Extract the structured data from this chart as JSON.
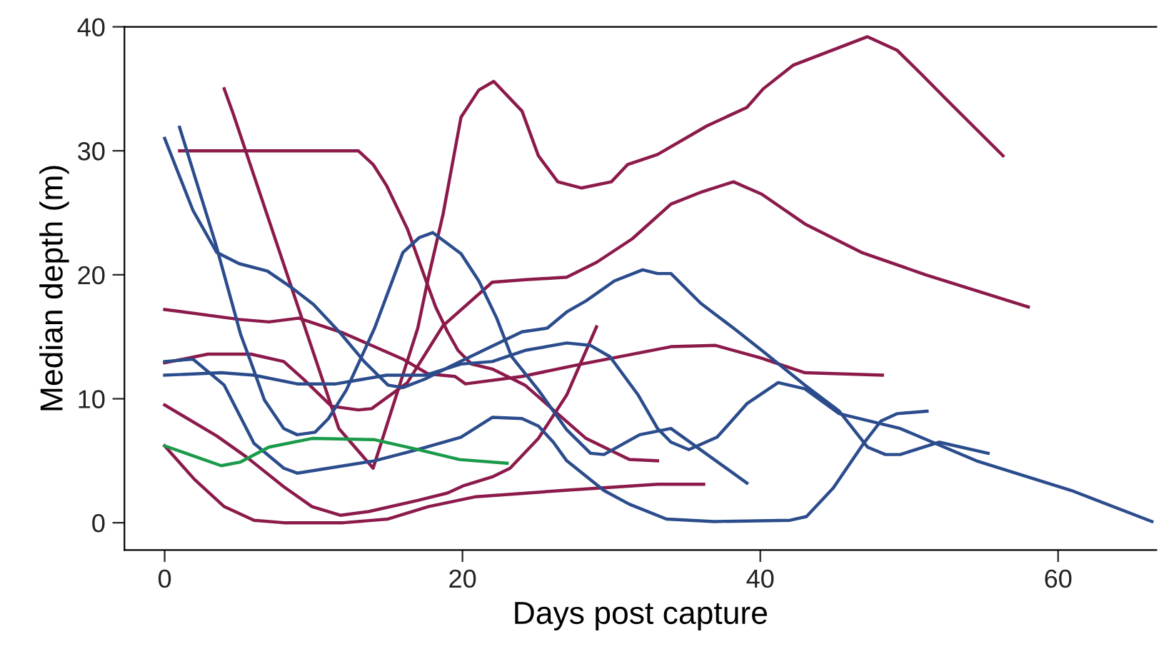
{
  "chart_data": {
    "type": "line",
    "xlabel": "Days post capture",
    "ylabel": "Median depth (m)",
    "xlim": [
      -2.7,
      66.6
    ],
    "ylim": [
      -2.2,
      40
    ],
    "xticks": [
      0,
      20,
      40,
      60
    ],
    "yticks": [
      0,
      10,
      20,
      30,
      40
    ],
    "grid": false,
    "marker": "none",
    "line_style": "solid",
    "series": [
      {
        "color": "#8b1a4b",
        "x": [
          4,
          4.6,
          11.7,
          14,
          17,
          17.7,
          18.7,
          19.9,
          21.1,
          22.1,
          24,
          25.1,
          26.4,
          28,
          30,
          31.1,
          33.1,
          36.4,
          39.1,
          40.2,
          42.2,
          47.2,
          49.2,
          50.8,
          52.7,
          56.3
        ],
        "values": [
          35,
          33,
          7.6,
          4.4,
          15.7,
          19.7,
          24.9,
          32.7,
          34.9,
          35.6,
          33.2,
          29.6,
          27.5,
          27,
          27.5,
          28.9,
          29.7,
          32,
          33.5,
          35,
          36.9,
          39.2,
          38.1,
          36.2,
          33.9,
          29.6
        ]
      },
      {
        "color": "#8b1a4b",
        "x": [
          1,
          13,
          14,
          14.9,
          16.3,
          17.5,
          18.2,
          19,
          19.7,
          20.6,
          22,
          24.2,
          26.1,
          28.3,
          31.2,
          33.1
        ],
        "values": [
          30,
          30,
          28.9,
          27.2,
          23.7,
          19.7,
          17.4,
          15.4,
          13.9,
          12.8,
          12.4,
          11.1,
          9.1,
          6.8,
          5.1,
          5
        ]
      },
      {
        "color": "#8b1a4b",
        "x": [
          0,
          5,
          7,
          9,
          12,
          16,
          17.7,
          19.5,
          20.2,
          24,
          28,
          34,
          37,
          40,
          43,
          48.2
        ],
        "values": [
          17.2,
          16.4,
          16.2,
          16.5,
          15.3,
          13.2,
          12,
          11.8,
          11.2,
          11.8,
          12.8,
          14.2,
          14.3,
          13.3,
          12.1,
          11.9
        ]
      },
      {
        "color": "#8b1a4b",
        "x": [
          0,
          2.9,
          5.8,
          8,
          9.3,
          11.2,
          13,
          13.9,
          16.3,
          18.7,
          22,
          24.2,
          27,
          29,
          31.4,
          34,
          36.1,
          38.2,
          40.1,
          43,
          46.8,
          51.1,
          58
        ],
        "values": [
          12.9,
          13.6,
          13.6,
          13,
          11.6,
          9.4,
          9.1,
          9.2,
          11.3,
          15.9,
          19.4,
          19.6,
          19.8,
          21,
          22.9,
          25.7,
          26.7,
          27.5,
          26.5,
          24.1,
          21.8,
          20,
          17.4
        ]
      },
      {
        "color": "#8b1a4b",
        "x": [
          0,
          3.5,
          5.5,
          8,
          9.9,
          11.8,
          13.7,
          17,
          19,
          20.1,
          22,
          23.2,
          25.1,
          27,
          29
        ],
        "values": [
          9.5,
          7,
          5.3,
          2.9,
          1.3,
          0.6,
          0.9,
          1.8,
          2.4,
          3,
          3.7,
          4.4,
          6.8,
          10.3,
          15.8
        ]
      },
      {
        "color": "#8b1a4b",
        "x": [
          0,
          2,
          4,
          6,
          8,
          12,
          15,
          17.7,
          20.9,
          26.7,
          33.1,
          36.2
        ],
        "values": [
          6.2,
          3.5,
          1.3,
          0.2,
          0,
          0,
          0.3,
          1.3,
          2.1,
          2.6,
          3.1,
          3.1
        ]
      },
      {
        "color": "#2b4c8c",
        "x": [
          0,
          1.9,
          3.5,
          5,
          6.9,
          8.6,
          10,
          11.8,
          13.4,
          15,
          16,
          17.5,
          19.5,
          21.4,
          24,
          25.7,
          27,
          28.3,
          30.2,
          32.1,
          33.1,
          34,
          36,
          37.1,
          38.2,
          40.1,
          43,
          45.3,
          47.2,
          48.4,
          49.4,
          52,
          55.3
        ],
        "values": [
          31,
          25.2,
          21.8,
          20.9,
          20.3,
          18.9,
          17.6,
          15.3,
          13,
          11.1,
          10.9,
          11.6,
          12.8,
          13.9,
          15.4,
          15.7,
          17,
          17.9,
          19.5,
          20.4,
          20.1,
          20.1,
          17.7,
          16.7,
          15.7,
          13.9,
          11.1,
          9,
          6.1,
          5.5,
          5.5,
          6.5,
          5.6
        ]
      },
      {
        "color": "#2b4c8c",
        "x": [
          1,
          3.4,
          5.1,
          5.9,
          6.7,
          8,
          8.9,
          10.1,
          11,
          12.2,
          14.1,
          16,
          17.1,
          18,
          19.9,
          21.1,
          22.3,
          23.3,
          25.1,
          27,
          28.6,
          29.5,
          31.9,
          34,
          39.1
        ],
        "values": [
          31.9,
          22.6,
          15.2,
          12.6,
          9.9,
          7.6,
          7.1,
          7.3,
          8.4,
          10.7,
          15.7,
          21.8,
          23,
          23.4,
          21.7,
          19.5,
          16.5,
          13.4,
          10.7,
          7.5,
          5.6,
          5.5,
          7.1,
          7.6,
          3.2
        ]
      },
      {
        "color": "#2b4c8c",
        "x": [
          0,
          1.9,
          4,
          6,
          8,
          8.9,
          14.1,
          17,
          19.9,
          22,
          24,
          25.1,
          26.1,
          27,
          29.5,
          31.2,
          33.7,
          36.9,
          42,
          43.1,
          44.9,
          47,
          48.1,
          49.2,
          51.2
        ],
        "values": [
          13,
          13.2,
          11.1,
          6.4,
          4.4,
          4,
          5,
          5.9,
          6.9,
          8.5,
          8.4,
          7.8,
          6.5,
          5,
          2.6,
          1.5,
          0.3,
          0.1,
          0.2,
          0.5,
          2.8,
          6.5,
          8.2,
          8.8,
          9
        ]
      },
      {
        "color": "#2b4c8c",
        "x": [
          0,
          3.8,
          6,
          8.9,
          11.5,
          14.9,
          17.5,
          19.9,
          22,
          24.2,
          27,
          28.6,
          29.9,
          31.8,
          33.1,
          34,
          35.2,
          37.1,
          39.1,
          41.2,
          43,
          45.3,
          49.4,
          54.5,
          60.9,
          66.3
        ],
        "values": [
          11.9,
          12.1,
          11.9,
          11.2,
          11.2,
          11.9,
          11.9,
          12.8,
          13,
          13.9,
          14.5,
          14.3,
          13.4,
          10.3,
          7.6,
          6.5,
          5.9,
          6.9,
          9.6,
          11.3,
          10.8,
          8.8,
          7.6,
          5,
          2.6,
          0.1
        ]
      },
      {
        "color": "#1a9a4a",
        "x": [
          0,
          1.9,
          3.8,
          5.1,
          7,
          9.9,
          14.1,
          17,
          19.8,
          23
        ],
        "values": [
          6.2,
          5.4,
          4.6,
          4.9,
          6.1,
          6.8,
          6.7,
          5.9,
          5.1,
          4.8
        ]
      }
    ]
  }
}
